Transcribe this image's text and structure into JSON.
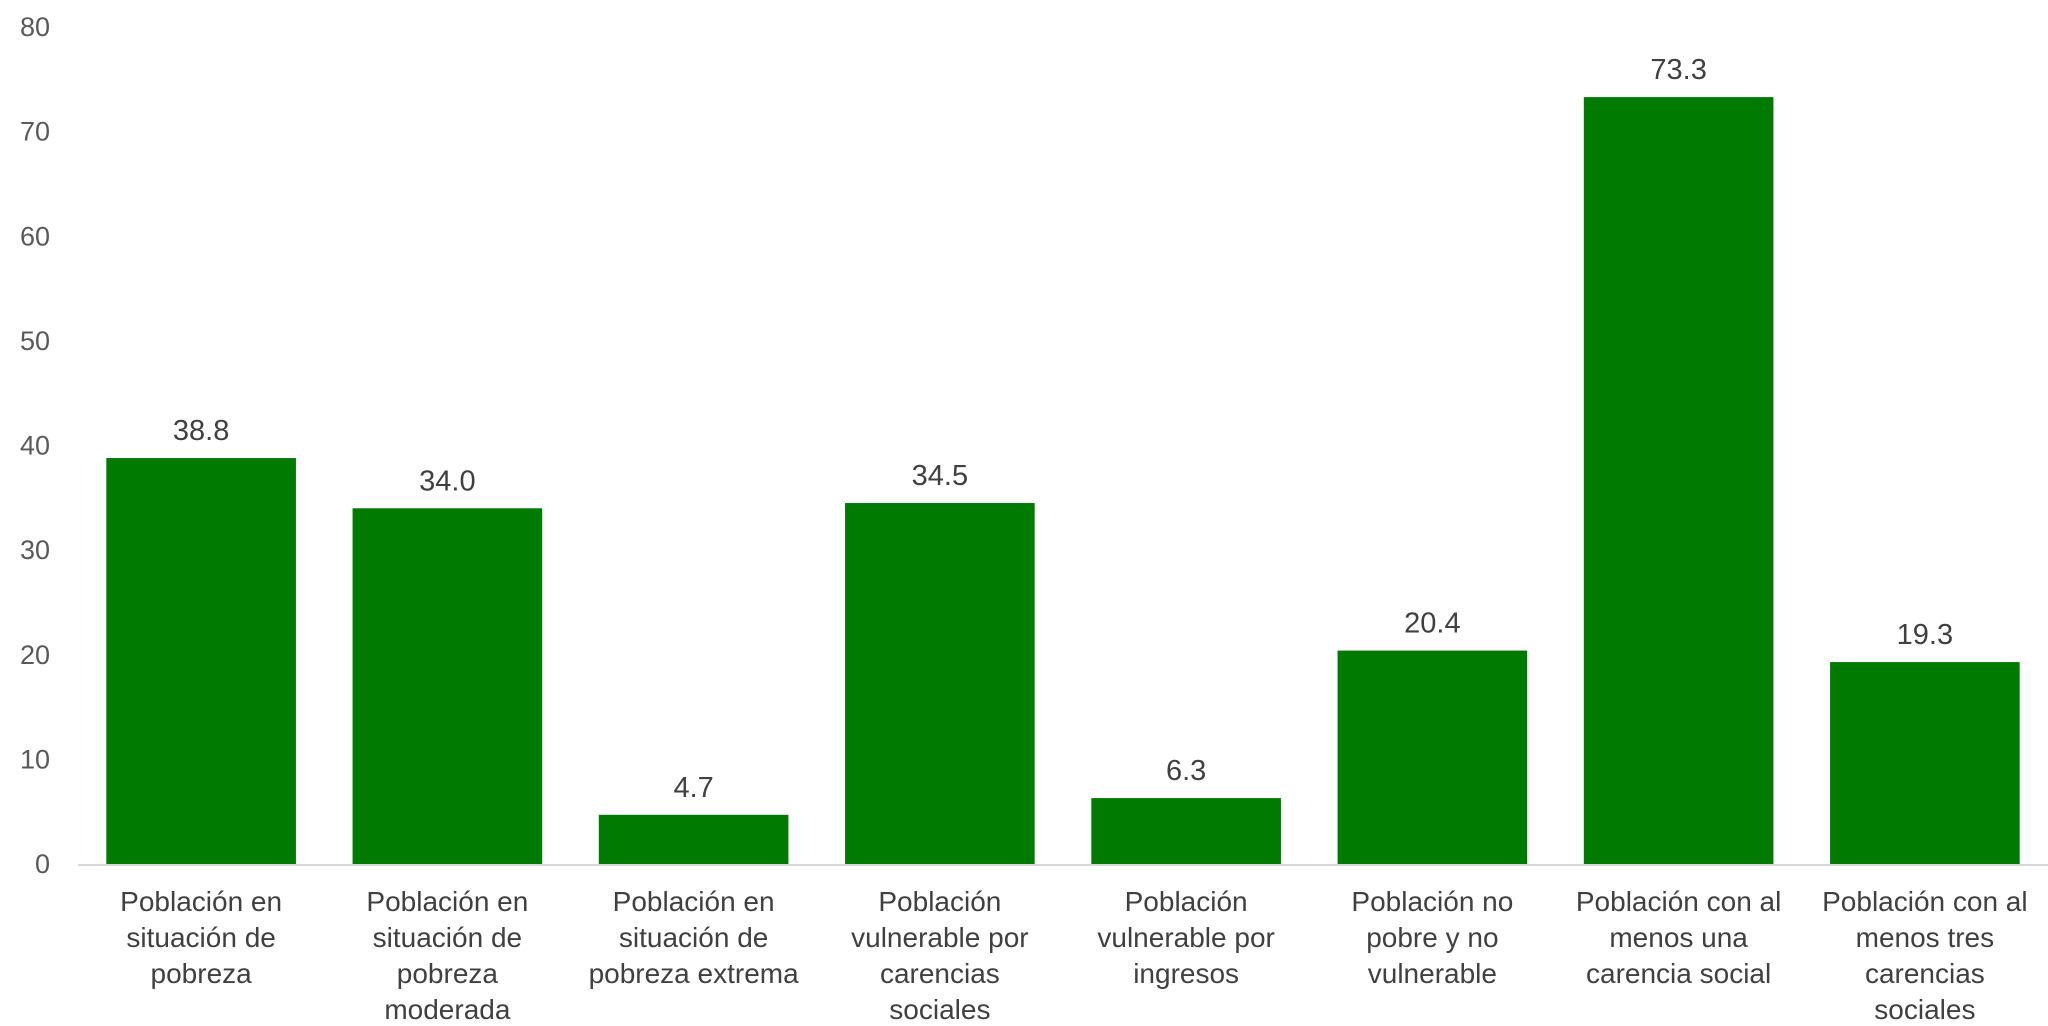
{
  "chart_data": {
    "type": "bar",
    "categories": [
      [
        "Población en",
        "situación de",
        "pobreza"
      ],
      [
        "Población en",
        "situación de",
        "pobreza",
        "moderada"
      ],
      [
        "Población en",
        "situación de",
        "pobreza extrema"
      ],
      [
        "Población",
        "vulnerable por",
        "carencias",
        "sociales"
      ],
      [
        "Población",
        "vulnerable por",
        "ingresos"
      ],
      [
        "Población no",
        "pobre y no",
        "vulnerable"
      ],
      [
        "Población con al",
        "menos una",
        "carencia social"
      ],
      [
        "Población con al",
        "menos tres",
        "carencias",
        "sociales"
      ]
    ],
    "values": [
      38.8,
      34.0,
      4.7,
      34.5,
      6.3,
      20.4,
      73.3,
      19.3
    ],
    "value_labels": [
      "38.8",
      "34.0",
      "4.7",
      "34.5",
      "6.3",
      "20.4",
      "73.3",
      "19.3"
    ],
    "yticks": [
      "0",
      "10",
      "20",
      "30",
      "40",
      "50",
      "60",
      "70",
      "80"
    ],
    "ylim": [
      0,
      80
    ],
    "bar_color": "#007a00",
    "axis_color": "#d9d9d9",
    "grid": false,
    "legend": "none"
  }
}
